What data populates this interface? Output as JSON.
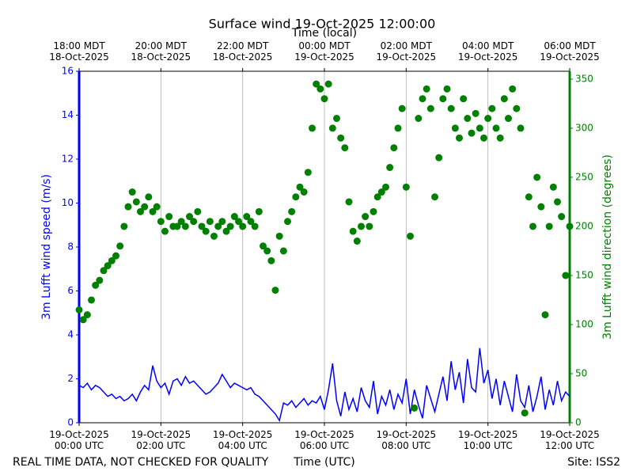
{
  "chart_data": {
    "type": "line",
    "title": "Surface wind 19-Oct-2025 12:00:00",
    "xlabel": "Time (UTC)",
    "x2label": "Time (local)",
    "ylabel": "3m Lufft wind speed (m/s)",
    "y2label": "3m Lufft wind direction (degrees)",
    "footer_left": "REAL TIME DATA, NOT CHECKED FOR QUALITY",
    "footer_right": "Site: ISS2",
    "grid": true,
    "xlim": [
      0,
      12
    ],
    "xticks": [
      {
        "value": 0,
        "label": "19-Oct-2025\n00:00 UTC"
      },
      {
        "value": 2,
        "label": "19-Oct-2025\n02:00 UTC"
      },
      {
        "value": 4,
        "label": "19-Oct-2025\n04:00 UTC"
      },
      {
        "value": 6,
        "label": "19-Oct-2025\n06:00 UTC"
      },
      {
        "value": 8,
        "label": "19-Oct-2025\n08:00 UTC"
      },
      {
        "value": 10,
        "label": "19-Oct-2025\n10:00 UTC"
      },
      {
        "value": 12,
        "label": "19-Oct-2025\n12:00 UTC"
      }
    ],
    "x2ticks": [
      {
        "value": 0,
        "label": "18:00 MDT\n18-Oct-2025"
      },
      {
        "value": 2,
        "label": "20:00 MDT\n18-Oct-2025"
      },
      {
        "value": 4,
        "label": "22:00 MDT\n18-Oct-2025"
      },
      {
        "value": 6,
        "label": "00:00 MDT\n19-Oct-2025"
      },
      {
        "value": 8,
        "label": "02:00 MDT\n19-Oct-2025"
      },
      {
        "value": 10,
        "label": "04:00 MDT\n19-Oct-2025"
      },
      {
        "value": 12,
        "label": "06:00 MDT\n19-Oct-2025"
      }
    ],
    "ylim": [
      0,
      16
    ],
    "yticks": [
      0,
      2,
      4,
      6,
      8,
      10,
      12,
      14,
      16
    ],
    "y2lim": [
      0,
      358
    ],
    "y2ticks": [
      0,
      50,
      100,
      150,
      200,
      250,
      300,
      350
    ],
    "x": [
      0,
      0.1,
      0.2,
      0.3,
      0.4,
      0.5,
      0.6,
      0.7,
      0.8,
      0.9,
      1,
      1.1,
      1.2,
      1.3,
      1.4,
      1.5,
      1.6,
      1.7,
      1.8,
      1.9,
      2,
      2.1,
      2.2,
      2.3,
      2.4,
      2.5,
      2.6,
      2.7,
      2.8,
      2.9,
      3,
      3.1,
      3.2,
      3.3,
      3.4,
      3.5,
      3.6,
      3.7,
      3.8,
      3.9,
      4,
      4.1,
      4.2,
      4.3,
      4.4,
      4.5,
      4.6,
      4.7,
      4.8,
      4.9,
      5,
      5.1,
      5.2,
      5.3,
      5.4,
      5.5,
      5.6,
      5.7,
      5.8,
      5.9,
      6,
      6.1,
      6.2,
      6.3,
      6.4,
      6.5,
      6.6,
      6.7,
      6.8,
      6.9,
      7,
      7.1,
      7.2,
      7.3,
      7.4,
      7.5,
      7.6,
      7.7,
      7.8,
      7.9,
      8,
      8.1,
      8.2,
      8.3,
      8.4,
      8.5,
      8.6,
      8.7,
      8.8,
      8.9,
      9,
      9.1,
      9.2,
      9.3,
      9.4,
      9.5,
      9.6,
      9.7,
      9.8,
      9.9,
      10,
      10.1,
      10.2,
      10.3,
      10.4,
      10.5,
      10.6,
      10.7,
      10.8,
      10.9,
      11,
      11.1,
      11.2,
      11.3,
      11.4,
      11.5,
      11.6,
      11.7,
      11.8,
      11.9,
      12
    ],
    "series": [
      {
        "name": "3m Lufft wind speed (m/s)",
        "type": "line",
        "color": "#0000ff",
        "values": [
          1.7,
          1.6,
          1.8,
          1.5,
          1.7,
          1.6,
          1.4,
          1.2,
          1.3,
          1.1,
          1.2,
          1.0,
          1.1,
          1.3,
          1.0,
          1.4,
          1.7,
          1.5,
          2.6,
          1.9,
          1.6,
          1.8,
          1.3,
          1.9,
          2.0,
          1.7,
          2.1,
          1.8,
          1.9,
          1.7,
          1.5,
          1.3,
          1.4,
          1.6,
          1.8,
          2.2,
          1.9,
          1.6,
          1.8,
          1.7,
          1.6,
          1.5,
          1.6,
          1.3,
          1.2,
          1.0,
          0.8,
          0.6,
          0.4,
          0.1,
          0.9,
          0.8,
          1.0,
          0.7,
          0.9,
          1.1,
          0.8,
          1.0,
          0.9,
          1.2,
          0.6,
          1.5,
          2.7,
          1.0,
          0.3,
          1.4,
          0.6,
          1.1,
          0.5,
          1.6,
          1.0,
          0.7,
          1.9,
          0.4,
          1.2,
          0.8,
          1.5,
          0.6,
          1.3,
          0.9,
          2.0,
          0.4,
          1.5,
          0.8,
          0.2,
          1.7,
          1.1,
          0.5,
          1.3,
          2.1,
          1.0,
          2.8,
          1.5,
          2.3,
          0.9,
          2.9,
          1.6,
          1.4,
          3.4,
          1.8,
          2.4,
          1.1,
          2.0,
          0.8,
          1.9,
          1.2,
          0.5,
          2.2,
          1.0,
          0.7,
          1.7,
          0.5,
          1.2,
          2.1,
          0.6,
          1.5,
          0.8,
          1.9,
          1.0,
          1.4,
          1.2
        ]
      },
      {
        "name": "3m Lufft wind direction (degrees)",
        "type": "scatter",
        "axis": "y2",
        "color": "#008000",
        "values": [
          115,
          105,
          110,
          125,
          140,
          145,
          155,
          160,
          165,
          170,
          180,
          200,
          220,
          235,
          225,
          215,
          220,
          230,
          215,
          220,
          205,
          195,
          210,
          200,
          200,
          205,
          200,
          210,
          205,
          215,
          200,
          195,
          205,
          190,
          200,
          205,
          195,
          200,
          210,
          205,
          200,
          210,
          205,
          200,
          215,
          180,
          175,
          165,
          135,
          190,
          175,
          205,
          215,
          230,
          240,
          235,
          255,
          300,
          345,
          340,
          330,
          345,
          300,
          310,
          290,
          280,
          225,
          195,
          185,
          200,
          210,
          200,
          215,
          230,
          235,
          240,
          260,
          280,
          300,
          320,
          240,
          190,
          15,
          310,
          330,
          340,
          320,
          230,
          270,
          330,
          340,
          320,
          300,
          290,
          330,
          310,
          295,
          315,
          300,
          290,
          310,
          320,
          300,
          290,
          330,
          310,
          340,
          320,
          300,
          10,
          230,
          200,
          250,
          220,
          110,
          200,
          240,
          225,
          210,
          150,
          200
        ]
      }
    ]
  }
}
